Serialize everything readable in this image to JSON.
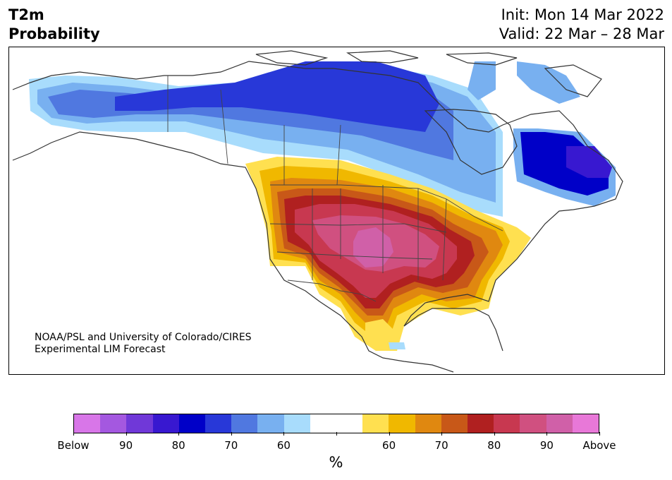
{
  "title": {
    "variable": "T2m",
    "subtitle": "Probability",
    "init": "Init: Mon 14 Mar 2022",
    "valid": "Valid: 22 Mar – 28 Mar"
  },
  "credit": {
    "line1": "NOAA/PSL and University of Colorado/CIRES",
    "line2": "Experimental LIM Forecast"
  },
  "colorbar": {
    "colors": [
      "#d876e8",
      "#a458e0",
      "#7038d8",
      "#3818d0",
      "#0000c8",
      "#2838d8",
      "#5078e0",
      "#78b0f0",
      "#a8dcfc",
      "#ffffff",
      "#ffffff",
      "#ffe050",
      "#f0b800",
      "#e08810",
      "#c85818",
      "#b02020",
      "#c83850",
      "#d05080",
      "#d060a8",
      "#e878d8"
    ],
    "labels": [
      "Below",
      "90",
      "80",
      "70",
      "60",
      "",
      "60",
      "70",
      "80",
      "90",
      "Above"
    ],
    "unit": "%"
  },
  "map_colors": {
    "coast": "#333333",
    "border": "#444444"
  }
}
